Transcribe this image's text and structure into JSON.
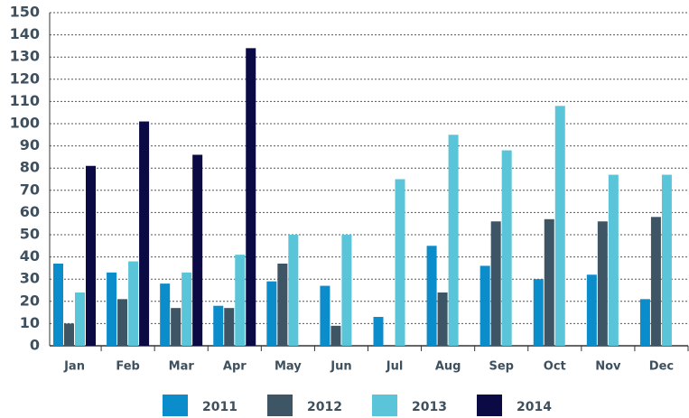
{
  "chart_data": {
    "type": "bar",
    "categories": [
      "Jan",
      "Feb",
      "Mar",
      "Apr",
      "May",
      "Jun",
      "Jul",
      "Aug",
      "Sep",
      "Oct",
      "Nov",
      "Dec"
    ],
    "series": [
      {
        "name": "2011",
        "color": "#0b8ccb",
        "values": [
          37,
          33,
          28,
          18,
          29,
          27,
          13,
          45,
          36,
          30,
          32,
          21
        ]
      },
      {
        "name": "2012",
        "color": "#3e5566",
        "values": [
          10,
          21,
          17,
          17,
          37,
          9,
          0,
          24,
          56,
          57,
          56,
          58
        ]
      },
      {
        "name": "2013",
        "color": "#5ac5d8",
        "values": [
          24,
          38,
          33,
          41,
          50,
          50,
          75,
          95,
          88,
          108,
          77,
          77
        ]
      },
      {
        "name": "2014",
        "color": "#0b0a45",
        "values": [
          81,
          101,
          86,
          134,
          0,
          0,
          0,
          0,
          0,
          0,
          0,
          0
        ]
      }
    ],
    "ylim": [
      0,
      150
    ],
    "yticks": [
      0,
      10,
      20,
      30,
      40,
      50,
      60,
      70,
      80,
      90,
      100,
      110,
      120,
      130,
      140,
      150
    ],
    "grid": true,
    "legend": "bottom"
  }
}
